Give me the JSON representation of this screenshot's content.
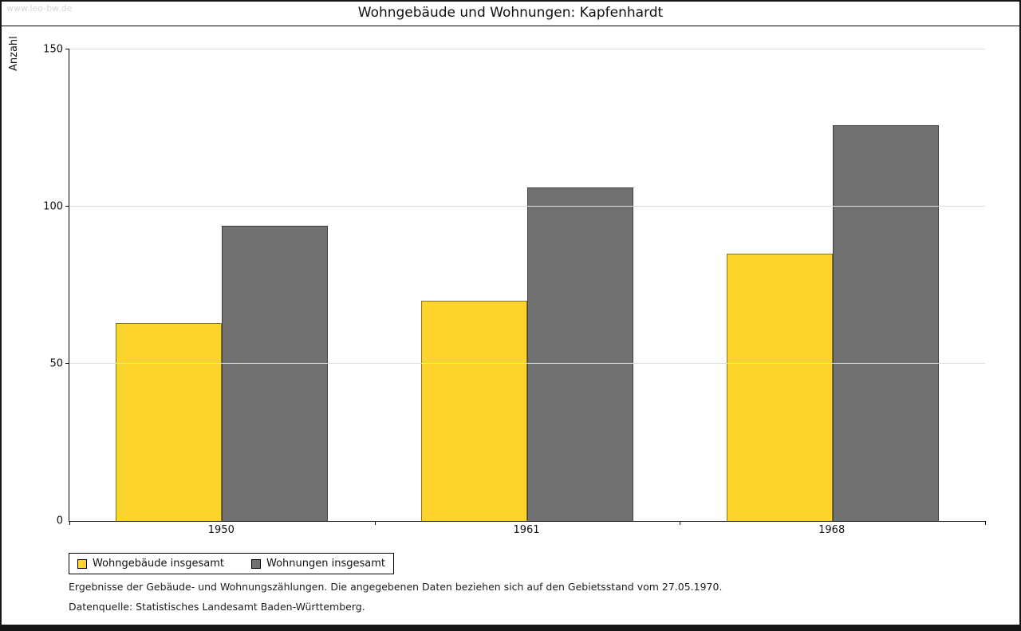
{
  "watermark": "www.leo-bw.de",
  "title": "Wohngebäude und Wohnungen: Kapfenhardt",
  "chart_data": {
    "type": "bar",
    "title": "Wohngebäude und Wohnungen: Kapfenhardt",
    "xlabel": "",
    "ylabel": "Anzahl",
    "ylim": [
      0,
      150
    ],
    "yticks": [
      0,
      50,
      100,
      150
    ],
    "grid": true,
    "legend_position": "bottom-left",
    "categories": [
      "1950",
      "1961",
      "1968"
    ],
    "series": [
      {
        "name": "Wohngebäude insgesamt",
        "color": "#fcd42c",
        "values": [
          63,
          70,
          85
        ]
      },
      {
        "name": "Wohnungen insgesamt",
        "color": "#717171",
        "values": [
          94,
          106,
          126
        ]
      }
    ]
  },
  "footnotes": [
    "Ergebnisse der Gebäude- und Wohnungszählungen. Die angegebenen Daten beziehen sich auf den Gebietsstand vom 27.05.1970.",
    "Datenquelle: Statistisches Landesamt Baden-Württemberg."
  ]
}
